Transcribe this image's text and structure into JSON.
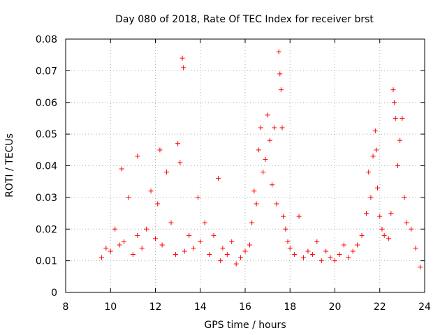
{
  "chart_data": {
    "type": "scatter",
    "title": "Day 080 of 2018, Rate Of TEC Index for receiver brst",
    "xlabel": "GPS time / hours",
    "ylabel": "ROTI / TECUs",
    "xlim": [
      8,
      24
    ],
    "ylim": [
      0,
      0.08
    ],
    "xticks": [
      8,
      10,
      12,
      14,
      16,
      18,
      20,
      22,
      24
    ],
    "xtick_labels": [
      "8",
      "10",
      "12",
      "14",
      "16",
      "18",
      "20",
      "22",
      "24"
    ],
    "yticks": [
      0,
      0.01,
      0.02,
      0.03,
      0.04,
      0.05,
      0.06,
      0.07,
      0.08
    ],
    "ytick_labels": [
      "0",
      "0.01",
      "0.02",
      "0.03",
      "0.04",
      "0.05",
      "0.06",
      "0.07",
      "0.08"
    ],
    "grid": true,
    "marker": "+",
    "color": "#ff0000",
    "x": [
      9.6,
      9.8,
      10.0,
      10.2,
      10.4,
      10.5,
      10.6,
      10.8,
      11.0,
      11.2,
      11.2,
      11.4,
      11.6,
      11.8,
      12.0,
      12.1,
      12.2,
      12.3,
      12.5,
      12.7,
      12.9,
      13.0,
      13.1,
      13.2,
      13.25,
      13.3,
      13.5,
      13.7,
      13.9,
      14.0,
      14.2,
      14.4,
      14.6,
      14.8,
      14.9,
      15.0,
      15.2,
      15.4,
      15.6,
      15.8,
      16.0,
      16.2,
      16.3,
      16.4,
      16.5,
      16.6,
      16.7,
      16.8,
      16.9,
      17.0,
      17.1,
      17.2,
      17.3,
      17.4,
      17.5,
      17.55,
      17.6,
      17.65,
      17.7,
      17.8,
      17.9,
      18.0,
      18.2,
      18.4,
      18.6,
      18.8,
      19.0,
      19.2,
      19.4,
      19.6,
      19.8,
      20.0,
      20.2,
      20.4,
      20.6,
      20.8,
      21.0,
      21.2,
      21.4,
      21.5,
      21.6,
      21.7,
      21.8,
      21.85,
      21.9,
      22.0,
      22.1,
      22.2,
      22.4,
      22.5,
      22.6,
      22.65,
      22.7,
      22.8,
      22.9,
      23.0,
      23.1,
      23.2,
      23.4,
      23.6,
      23.8
    ],
    "y": [
      0.011,
      0.014,
      0.013,
      0.02,
      0.015,
      0.039,
      0.016,
      0.03,
      0.012,
      0.043,
      0.018,
      0.014,
      0.02,
      0.032,
      0.017,
      0.028,
      0.045,
      0.015,
      0.038,
      0.022,
      0.012,
      0.047,
      0.041,
      0.074,
      0.071,
      0.013,
      0.018,
      0.014,
      0.03,
      0.016,
      0.022,
      0.012,
      0.018,
      0.036,
      0.01,
      0.014,
      0.012,
      0.016,
      0.009,
      0.011,
      0.013,
      0.015,
      0.022,
      0.032,
      0.028,
      0.045,
      0.052,
      0.038,
      0.042,
      0.056,
      0.048,
      0.034,
      0.052,
      0.028,
      0.076,
      0.069,
      0.064,
      0.052,
      0.024,
      0.02,
      0.016,
      0.014,
      0.012,
      0.024,
      0.011,
      0.013,
      0.012,
      0.016,
      0.01,
      0.013,
      0.011,
      0.01,
      0.012,
      0.015,
      0.011,
      0.013,
      0.015,
      0.018,
      0.025,
      0.038,
      0.03,
      0.043,
      0.051,
      0.045,
      0.033,
      0.024,
      0.02,
      0.018,
      0.017,
      0.025,
      0.064,
      0.06,
      0.055,
      0.04,
      0.048,
      0.055,
      0.03,
      0.022,
      0.02,
      0.014,
      0.008
    ]
  }
}
